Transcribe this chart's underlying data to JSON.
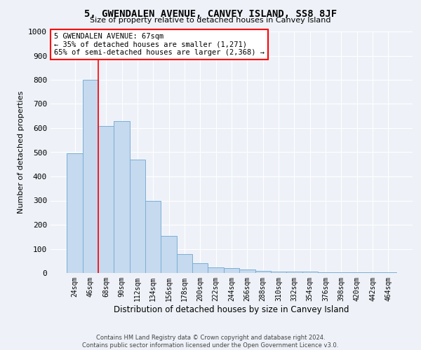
{
  "title": "5, GWENDALEN AVENUE, CANVEY ISLAND, SS8 8JF",
  "subtitle": "Size of property relative to detached houses in Canvey Island",
  "xlabel": "Distribution of detached houses by size in Canvey Island",
  "ylabel": "Number of detached properties",
  "bin_labels": [
    "24sqm",
    "46sqm",
    "68sqm",
    "90sqm",
    "112sqm",
    "134sqm",
    "156sqm",
    "178sqm",
    "200sqm",
    "222sqm",
    "244sqm",
    "266sqm",
    "288sqm",
    "310sqm",
    "332sqm",
    "354sqm",
    "376sqm",
    "398sqm",
    "420sqm",
    "442sqm",
    "464sqm"
  ],
  "bar_values": [
    495,
    800,
    610,
    630,
    470,
    300,
    155,
    78,
    40,
    22,
    20,
    14,
    10,
    6,
    5,
    5,
    4,
    4,
    4,
    4,
    3
  ],
  "bar_color": "#c5d9ef",
  "bar_edge_color": "#7bafd4",
  "vline_x_index": 1.5,
  "annotation_line1": "5 GWENDALEN AVENUE: 67sqm",
  "annotation_line2": "← 35% of detached houses are smaller (1,271)",
  "annotation_line3": "65% of semi-detached houses are larger (2,368) →",
  "ylim": [
    0,
    1000
  ],
  "yticks": [
    0,
    100,
    200,
    300,
    400,
    500,
    600,
    700,
    800,
    900,
    1000
  ],
  "footer1": "Contains HM Land Registry data © Crown copyright and database right 2024.",
  "footer2": "Contains public sector information licensed under the Open Government Licence v3.0.",
  "background_color": "#eef2f8",
  "grid_color": "#ffffff"
}
